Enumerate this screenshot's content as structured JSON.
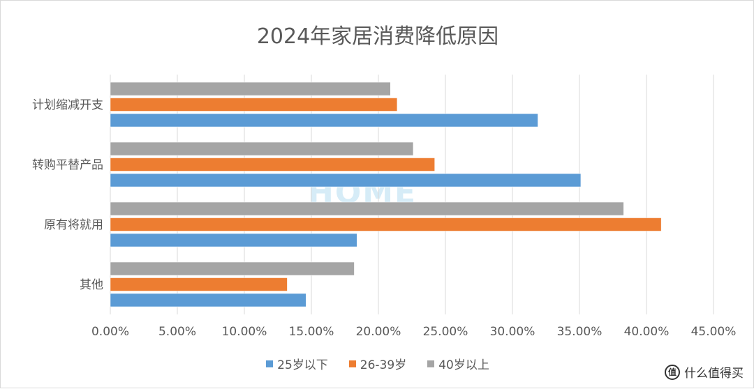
{
  "chart_data": {
    "type": "bar",
    "orientation": "horizontal",
    "title": "2024年家居消费降低原因",
    "categories": [
      "计划缩减开支",
      "转购平替产品",
      "原有将就用",
      "其他"
    ],
    "series": [
      {
        "name": "40岁以上",
        "color": "#a5a5a5",
        "values": [
          20.9,
          22.6,
          38.3,
          18.2
        ]
      },
      {
        "name": "26-39岁",
        "color": "#ed7d31",
        "values": [
          21.4,
          24.2,
          41.1,
          13.2
        ]
      },
      {
        "name": "25岁以下",
        "color": "#5b9bd5",
        "values": [
          31.9,
          35.1,
          18.4,
          14.6
        ]
      }
    ],
    "xlim": [
      0,
      45
    ],
    "xticks": [
      "0.00%",
      "5.00%",
      "10.00%",
      "15.00%",
      "20.00%",
      "25.00%",
      "30.00%",
      "35.00%",
      "40.00%",
      "45.00%"
    ],
    "grid": true,
    "legend_position": "bottom"
  },
  "watermark": "HOME",
  "brand": {
    "icon": "值",
    "text": "什么值得买"
  }
}
